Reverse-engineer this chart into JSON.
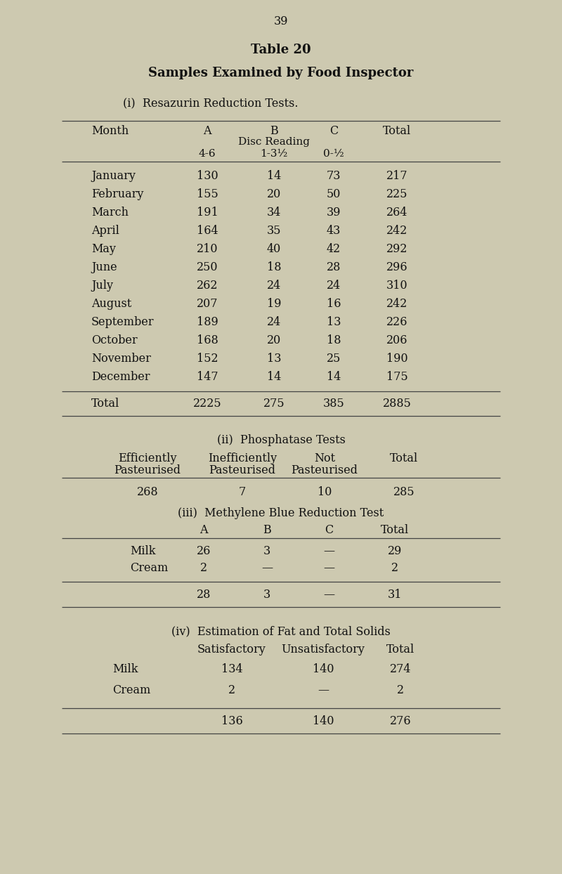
{
  "page_number": "39",
  "title": "Table 20",
  "subtitle": "Samples Examined by Food Inspector",
  "bg_color": "#cdc9b0",
  "section_i_label": "(i)  Resazurin Reduction Tests.",
  "section_i_data": [
    [
      "January",
      "130",
      "14",
      "73",
      "217"
    ],
    [
      "February",
      "155",
      "20",
      "50",
      "225"
    ],
    [
      "March",
      "191",
      "34",
      "39",
      "264"
    ],
    [
      "April",
      "164",
      "35",
      "43",
      "242"
    ],
    [
      "May",
      "210",
      "40",
      "42",
      "292"
    ],
    [
      "June",
      "250",
      "18",
      "28",
      "296"
    ],
    [
      "July",
      "262",
      "24",
      "24",
      "310"
    ],
    [
      "August",
      "207",
      "19",
      "16",
      "242"
    ],
    [
      "September",
      "189",
      "24",
      "13",
      "226"
    ],
    [
      "October",
      "168",
      "20",
      "18",
      "206"
    ],
    [
      "November",
      "152",
      "13",
      "25",
      "190"
    ],
    [
      "December",
      "147",
      "14",
      "14",
      "175"
    ]
  ],
  "section_i_total": [
    "Total",
    "2225",
    "275",
    "385",
    "2885"
  ],
  "section_ii_label": "(ii)  Phosphatase Tests",
  "section_ii_data": [
    "268",
    "7",
    "10",
    "285"
  ],
  "section_iii_label": "(iii)  Methylene Blue Reduction Test",
  "section_iii_data": [
    [
      "Milk",
      "26",
      "3",
      "—",
      "29"
    ],
    [
      "Cream",
      "2",
      "—",
      "—",
      "2"
    ]
  ],
  "section_iii_total": [
    "",
    "28",
    "3",
    "—",
    "31"
  ],
  "section_iv_label": "(iv)  Estimation of Fat and Total Solids",
  "section_iv_data": [
    [
      "Milk",
      "134",
      "140",
      "274"
    ],
    [
      "Cream",
      "2",
      "—",
      "2"
    ]
  ],
  "section_iv_total": [
    "",
    "136",
    "140",
    "276"
  ]
}
